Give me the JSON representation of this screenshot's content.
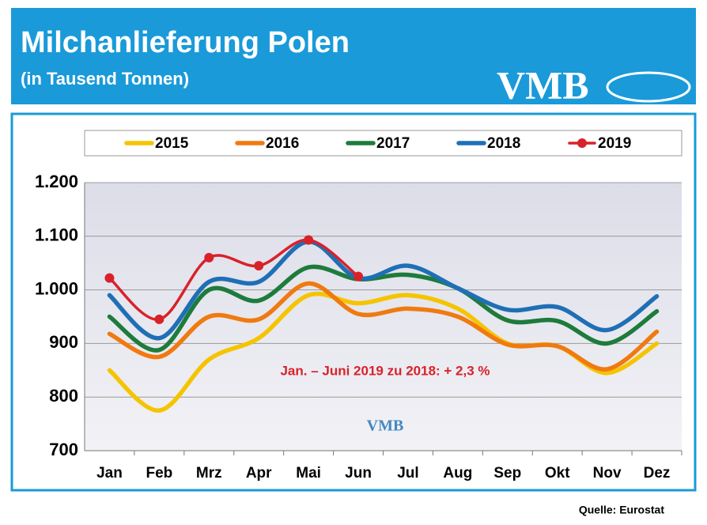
{
  "chart_data": {
    "type": "line",
    "title": "Milchanlieferung Polen",
    "subtitle": "(in Tausend Tonnen)",
    "logo": "VMB",
    "annotation": "Jan. – Juni 2019 zu 2018: + 2,3 %",
    "source": "Quelle: Eurostat",
    "categories": [
      "Jan",
      "Feb",
      "Mrz",
      "Apr",
      "Mai",
      "Jun",
      "Jul",
      "Aug",
      "Sep",
      "Okt",
      "Nov",
      "Dez"
    ],
    "series": [
      {
        "name": "2015",
        "color": "#f5c400",
        "values": [
          850,
          775,
          870,
          910,
          990,
          975,
          990,
          965,
          900,
          895,
          845,
          900
        ]
      },
      {
        "name": "2016",
        "color": "#f07a10",
        "values": [
          918,
          875,
          950,
          945,
          1012,
          955,
          965,
          950,
          898,
          895,
          852,
          922
        ]
      },
      {
        "name": "2017",
        "color": "#1e7b3c",
        "values": [
          950,
          888,
          1000,
          980,
          1042,
          1020,
          1028,
          1003,
          943,
          942,
          900,
          960
        ]
      },
      {
        "name": "2018",
        "color": "#1f6fb5",
        "values": [
          990,
          910,
          1015,
          1015,
          1090,
          1022,
          1045,
          1003,
          963,
          968,
          925,
          988
        ]
      },
      {
        "name": "2019",
        "color": "#d8222a",
        "markers": true,
        "values": [
          1022,
          945,
          1060,
          1045,
          1093,
          1025,
          null,
          null,
          null,
          null,
          null,
          null
        ]
      }
    ],
    "ylim": [
      700,
      1200
    ],
    "yticks": [
      700,
      800,
      900,
      {
        "value": 1000,
        "label": "1.000"
      },
      {
        "value": 1100,
        "label": "1.100"
      },
      {
        "value": 1200,
        "label": "1.200"
      }
    ],
    "grid": true,
    "legend": "top"
  }
}
